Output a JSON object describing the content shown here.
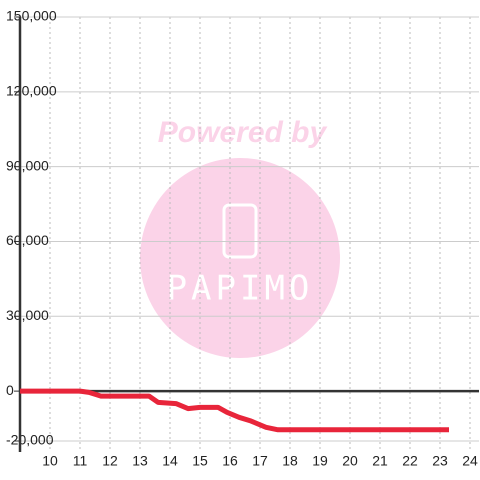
{
  "chart_data": {
    "type": "line",
    "watermark_title": "Powered by",
    "watermark_logo": "PAPIMO",
    "x": [
      9,
      11,
      11.3,
      11.7,
      12.3,
      13.3,
      13.6,
      14.2,
      14.6,
      15,
      15.6,
      15.9,
      16.3,
      16.7,
      17.2,
      17.6,
      18.5,
      23.3
    ],
    "series": [
      {
        "color": "#e8253a",
        "values": [
          0,
          0,
          -500,
          -2000,
          -2000,
          -2000,
          -4500,
          -5000,
          -7000,
          -6500,
          -6500,
          -8500,
          -10500,
          -12000,
          -14500,
          -15500,
          -15500,
          -15500
        ]
      }
    ],
    "xlim": [
      9,
      24.3
    ],
    "xticks": [
      10,
      11,
      12,
      13,
      14,
      15,
      16,
      17,
      18,
      19,
      20,
      21,
      22,
      23,
      24
    ],
    "ylim": [
      -20000,
      150000
    ],
    "yticks": [
      {
        "value": -20000,
        "label": "-20,000"
      },
      0,
      {
        "value": 30000,
        "label": "30,000"
      },
      {
        "value": 60000,
        "label": "60,000"
      },
      {
        "value": 90000,
        "label": "90,000"
      },
      {
        "value": 120000,
        "label": "120,000"
      },
      {
        "value": 150000,
        "label": "150,000"
      }
    ],
    "grid": true
  }
}
